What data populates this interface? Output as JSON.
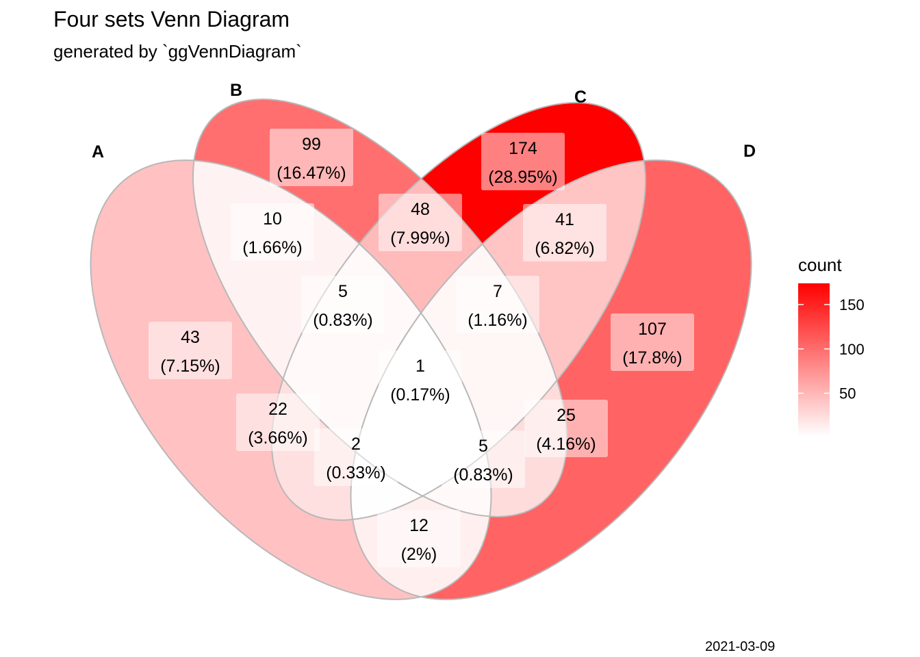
{
  "title": "Four sets Venn Diagram",
  "subtitle": "generated by `ggVennDiagram`",
  "caption": "2021-03-09",
  "colors": {
    "low": "#ffffff",
    "high": "#ff0000",
    "edge": "#b8b8b8"
  },
  "legend": {
    "title": "count",
    "ticks": [
      150,
      100,
      50
    ],
    "range": [
      1,
      174
    ]
  },
  "chart_data": {
    "type": "venn",
    "sets": [
      "A",
      "B",
      "C",
      "D"
    ],
    "regions": [
      {
        "sets": [
          "A"
        ],
        "count": 43,
        "percent": "(7.15%)"
      },
      {
        "sets": [
          "B"
        ],
        "count": 99,
        "percent": "(16.47%)"
      },
      {
        "sets": [
          "C"
        ],
        "count": 174,
        "percent": "(28.95%)"
      },
      {
        "sets": [
          "D"
        ],
        "count": 107,
        "percent": "(17.8%)"
      },
      {
        "sets": [
          "A",
          "B"
        ],
        "count": 10,
        "percent": "(1.66%)"
      },
      {
        "sets": [
          "B",
          "C"
        ],
        "count": 48,
        "percent": "(7.99%)"
      },
      {
        "sets": [
          "C",
          "D"
        ],
        "count": 41,
        "percent": "(6.82%)"
      },
      {
        "sets": [
          "A",
          "B",
          "C"
        ],
        "count": 5,
        "percent": "(0.83%)"
      },
      {
        "sets": [
          "B",
          "C",
          "D"
        ],
        "count": 7,
        "percent": "(1.16%)"
      },
      {
        "sets": [
          "A",
          "C"
        ],
        "count": 22,
        "percent": "(3.66%)"
      },
      {
        "sets": [
          "B",
          "D"
        ],
        "count": 25,
        "percent": "(4.16%)"
      },
      {
        "sets": [
          "A",
          "B",
          "C",
          "D"
        ],
        "count": 1,
        "percent": "(0.17%)"
      },
      {
        "sets": [
          "A",
          "C",
          "D"
        ],
        "count": 2,
        "percent": "(0.33%)"
      },
      {
        "sets": [
          "A",
          "B",
          "D"
        ],
        "count": 5,
        "percent": "(0.83%)"
      },
      {
        "sets": [
          "A",
          "D"
        ],
        "count": 12,
        "percent": "(2%)"
      }
    ]
  }
}
